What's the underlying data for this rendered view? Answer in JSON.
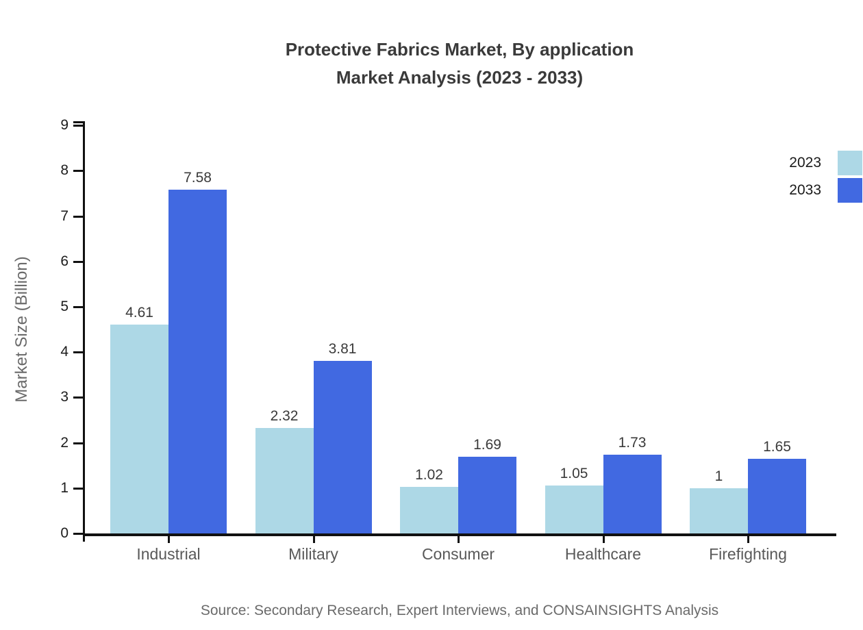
{
  "chart_data": {
    "type": "bar",
    "title": "Protective Fabrics Market, By application",
    "subtitle": "Market Analysis (2023 - 2033)",
    "ylabel": "Market Size (Billion)",
    "categories": [
      "Industrial",
      "Military",
      "Consumer",
      "Healthcare",
      "Firefighting"
    ],
    "series": [
      {
        "name": "2023",
        "color": "#ADD8E6",
        "values": [
          4.61,
          2.32,
          1.02,
          1.05,
          1
        ]
      },
      {
        "name": "2033",
        "color": "#4169E1",
        "values": [
          7.58,
          3.81,
          1.69,
          1.73,
          1.65
        ]
      }
    ],
    "ylim": [
      0,
      9
    ],
    "yticks": [
      0,
      1,
      2,
      3,
      4,
      5,
      6,
      7,
      8,
      9
    ],
    "grid": false,
    "legend_position": "top-right",
    "source": "Source: Secondary Research, Expert Interviews, and CONSAINSIGHTS Analysis"
  }
}
